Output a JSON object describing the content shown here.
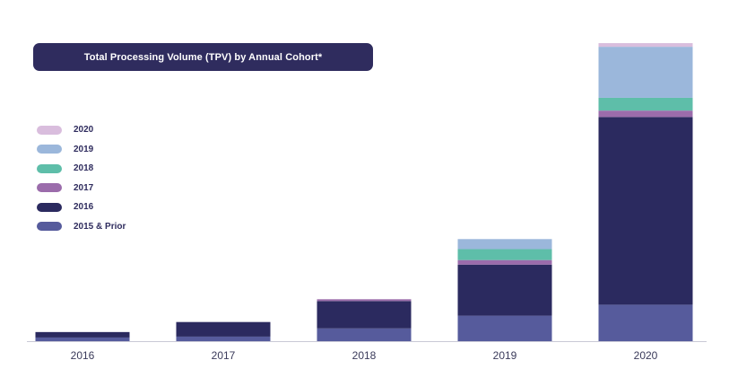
{
  "chart_data": {
    "type": "bar",
    "stacked": true,
    "title": "Total Processing Volume (TPV) by Annual Cohort*",
    "categories": [
      "2016",
      "2017",
      "2018",
      "2019",
      "2020"
    ],
    "series": [
      {
        "name": "2015 & Prior",
        "color": "#565b9c",
        "values": [
          2,
          2.5,
          7,
          14,
          20
        ]
      },
      {
        "name": "2016",
        "color": "#2b2a5f",
        "values": [
          3,
          8,
          15,
          28,
          103
        ]
      },
      {
        "name": "2017",
        "color": "#9b6cab",
        "values": [
          0,
          0,
          1,
          2.5,
          3.5
        ]
      },
      {
        "name": "2018",
        "color": "#5ebea9",
        "values": [
          0,
          0,
          0,
          6,
          7
        ]
      },
      {
        "name": "2019",
        "color": "#9bb7db",
        "values": [
          0,
          0,
          0,
          5.5,
          28
        ]
      },
      {
        "name": "2020",
        "color": "#d9bddd",
        "values": [
          0,
          0,
          0,
          0,
          2
        ]
      }
    ],
    "legend_order": [
      "2020",
      "2019",
      "2018",
      "2017",
      "2016",
      "2015 & Prior"
    ],
    "legend_position": "left",
    "ylim": [
      0,
      165
    ],
    "grid": false,
    "axis_color": "#c9c9d6"
  }
}
